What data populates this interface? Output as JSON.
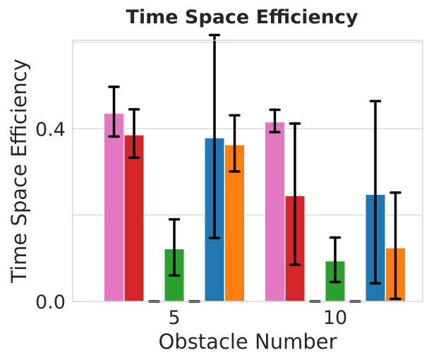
{
  "chart_data": {
    "type": "bar",
    "title": "Time Space Efficiency",
    "xlabel": "Obstacle Number",
    "ylabel": "Time Space Efficiency",
    "categories": [
      "5",
      "10"
    ],
    "ylim": [
      0,
      0.605
    ],
    "yticks": [
      0.0,
      0.4
    ],
    "ytick_labels": [
      "0.0",
      "0.4"
    ],
    "grid_y": [
      0.0,
      0.2,
      0.4,
      0.6
    ],
    "grid": true,
    "series": [
      {
        "color": "#e377c2",
        "values": [
          0.436,
          0.416
        ],
        "err_low": [
          0.382,
          0.392
        ],
        "err_high": [
          0.497,
          0.444
        ]
      },
      {
        "color": "#d62728",
        "values": [
          0.386,
          0.245
        ],
        "err_low": [
          0.333,
          0.085
        ],
        "err_high": [
          0.445,
          0.412
        ]
      },
      {
        "color": "#8c564b",
        "values": [
          0.0,
          0.0
        ],
        "err_low": [
          0.0,
          0.0
        ],
        "err_high": [
          0.0,
          0.0
        ]
      },
      {
        "color": "#2ca02c",
        "values": [
          0.122,
          0.094
        ],
        "err_low": [
          0.06,
          0.045
        ],
        "err_high": [
          0.19,
          0.148
        ]
      },
      {
        "color": "#9467bd",
        "values": [
          0.0,
          0.0
        ],
        "err_low": [
          0.0,
          0.0
        ],
        "err_high": [
          0.0,
          0.0
        ]
      },
      {
        "color": "#1f77b4",
        "values": [
          0.379,
          0.248
        ],
        "err_low": [
          0.147,
          0.042
        ],
        "err_high": [
          0.617,
          0.464
        ]
      },
      {
        "color": "#ff7f0e",
        "values": [
          0.363,
          0.124
        ],
        "err_low": [
          0.301,
          0.006
        ],
        "err_high": [
          0.431,
          0.252
        ]
      }
    ]
  }
}
